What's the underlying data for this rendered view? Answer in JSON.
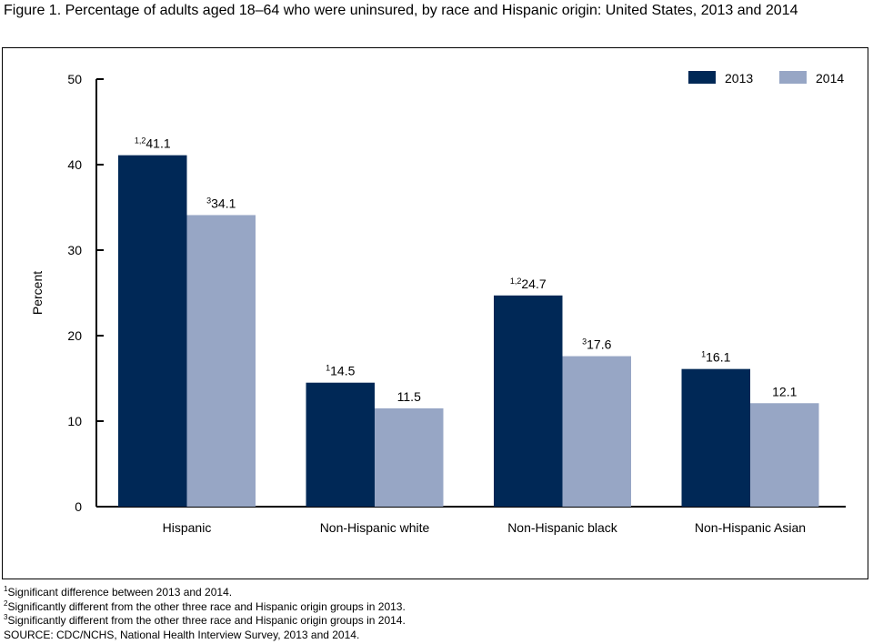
{
  "title": "Figure 1. Percentage of adults aged 18–64 who were uninsured, by race and Hispanic origin: United States, 2013 and 2014",
  "chart_data": {
    "type": "bar",
    "title": "Figure 1. Percentage of adults aged 18–64 who were uninsured, by race and Hispanic origin: United States, 2013 and 2014",
    "xlabel": "",
    "ylabel": "Percent",
    "ylim": [
      0,
      50
    ],
    "yticks": [
      "0",
      "10",
      "20",
      "30",
      "40",
      "50"
    ],
    "grid": false,
    "legend_position": "top-right",
    "categories": [
      "Hispanic",
      "Non-Hispanic white",
      "Non-Hispanic black",
      "Non-Hispanic Asian"
    ],
    "series": [
      {
        "name": "2013",
        "color": "#002856",
        "values": [
          41.1,
          14.5,
          24.7,
          16.1
        ],
        "labels": [
          "41.1",
          "14.5",
          "24.7",
          "16.1"
        ],
        "superscripts": [
          "1,2",
          "1",
          "1,2",
          "1"
        ]
      },
      {
        "name": "2014",
        "color": "#97a6c5",
        "values": [
          34.1,
          11.5,
          17.6,
          12.1
        ],
        "labels": [
          "34.1",
          "11.5",
          "17.6",
          "12.1"
        ],
        "superscripts": [
          "3",
          "",
          "3",
          ""
        ]
      }
    ]
  },
  "footnotes": [
    {
      "mark": "1",
      "text": "Significant difference between 2013 and 2014."
    },
    {
      "mark": "2",
      "text": "Significantly different from the other three race and Hispanic origin groups in 2013."
    },
    {
      "mark": "3",
      "text": "Significantly different from the other three race and Hispanic origin groups in 2014."
    }
  ],
  "source": "SOURCE: CDC/NCHS, National Health Interview Survey, 2013 and 2014."
}
